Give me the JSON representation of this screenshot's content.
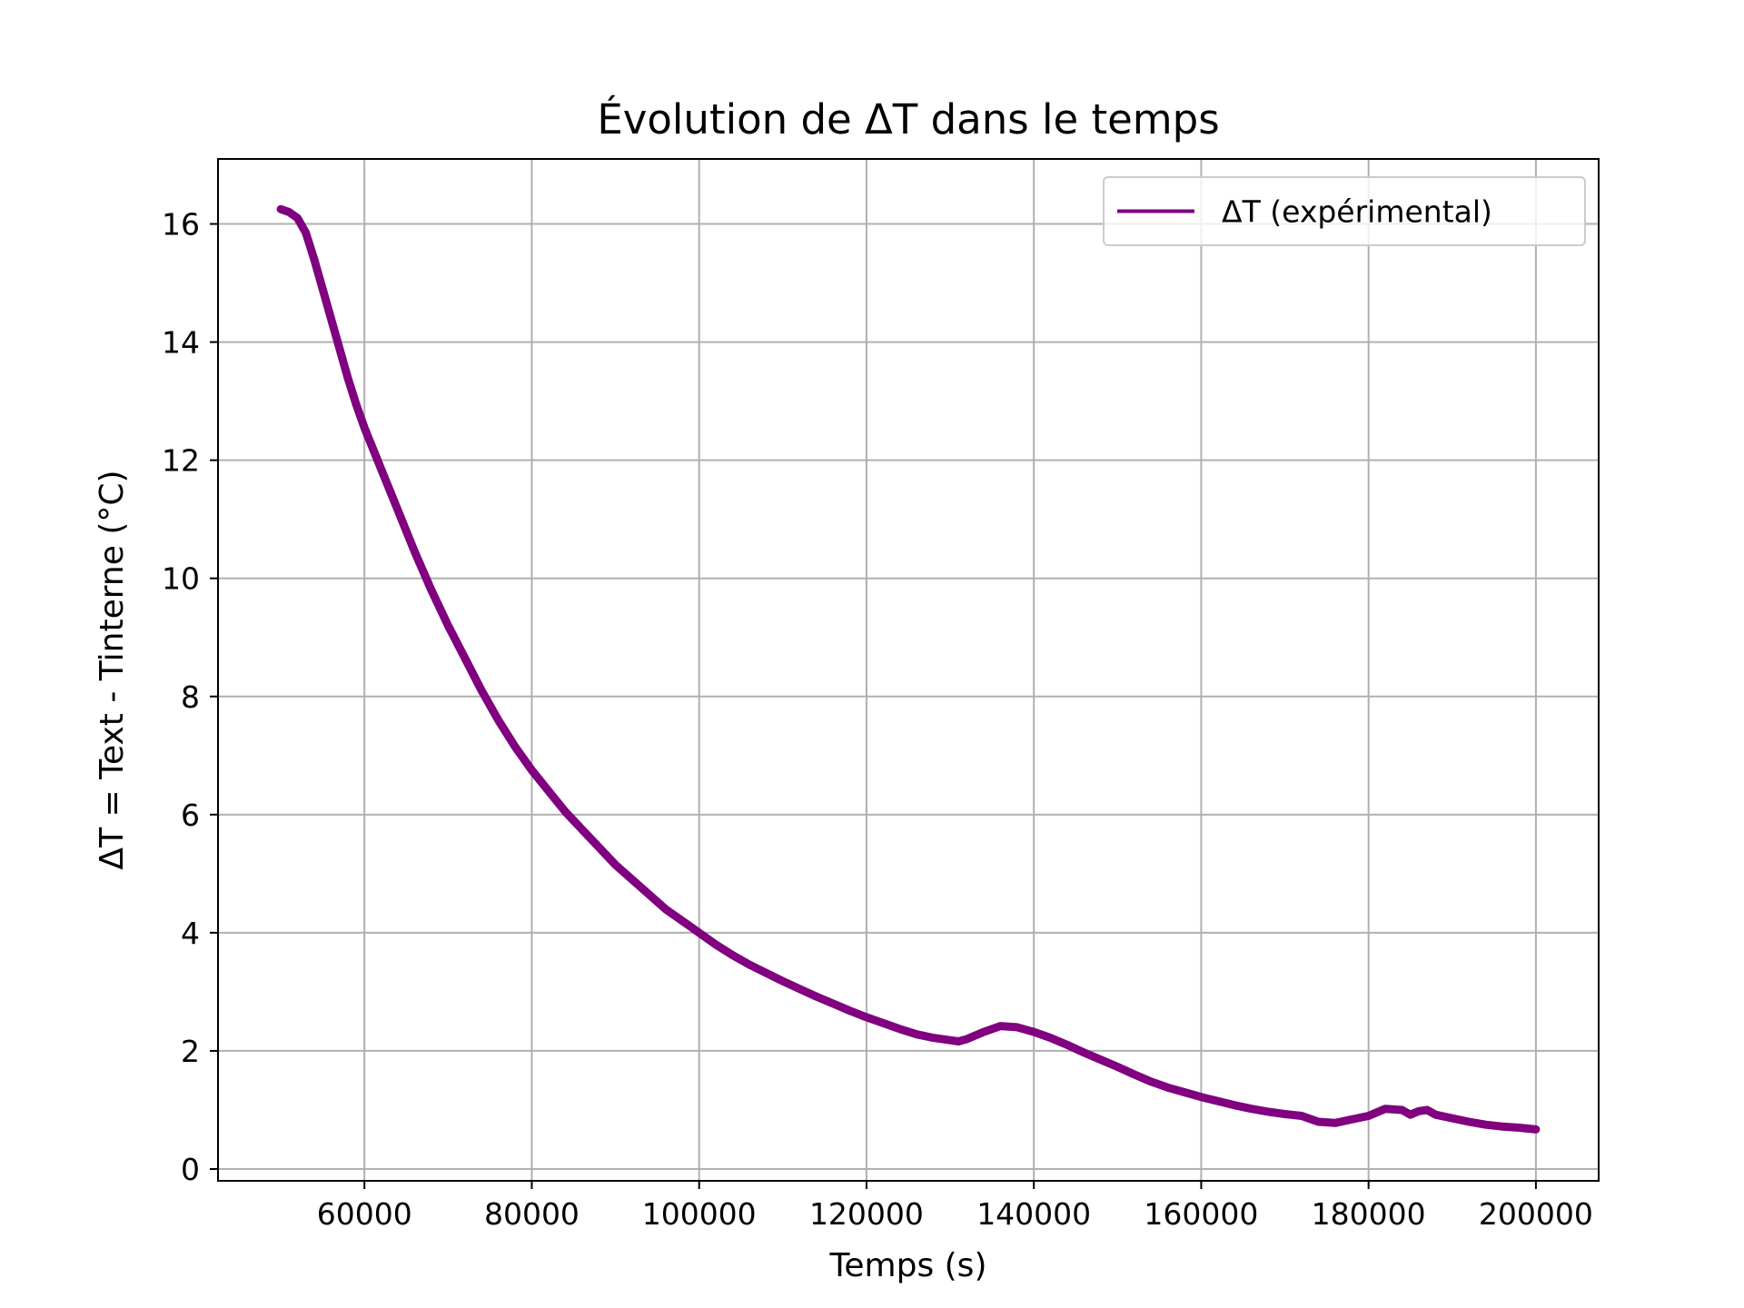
{
  "chart_data": {
    "type": "line",
    "title": "Évolution de ΔT dans le temps",
    "xlabel": "Temps (s)",
    "ylabel": "ΔT = Text - Tinterne (°C)",
    "xlim": [
      42500,
      207500
    ],
    "ylim": [
      -0.2,
      17.1
    ],
    "xticks": [
      60000,
      80000,
      100000,
      120000,
      140000,
      160000,
      180000,
      200000
    ],
    "xtick_labels": [
      "60000",
      "80000",
      "100000",
      "120000",
      "140000",
      "160000",
      "180000",
      "200000"
    ],
    "yticks": [
      0,
      2,
      4,
      6,
      8,
      10,
      12,
      14,
      16
    ],
    "ytick_labels": [
      "0",
      "2",
      "4",
      "6",
      "8",
      "10",
      "12",
      "14",
      "16"
    ],
    "grid": true,
    "legend_position": "top-right",
    "series": [
      {
        "name": "ΔT (expérimental)",
        "color": "#800080",
        "x": [
          50000,
          51000,
          52000,
          53000,
          54000,
          55000,
          56000,
          57000,
          58000,
          59000,
          60000,
          62000,
          64000,
          66000,
          68000,
          70000,
          72000,
          74000,
          76000,
          78000,
          80000,
          82000,
          84000,
          86000,
          88000,
          90000,
          92000,
          94000,
          96000,
          98000,
          100000,
          102000,
          104000,
          106000,
          108000,
          110000,
          112000,
          114000,
          116000,
          118000,
          120000,
          122000,
          124000,
          126000,
          128000,
          130000,
          131000,
          132000,
          134000,
          136000,
          138000,
          140000,
          142000,
          144000,
          146000,
          148000,
          150000,
          152000,
          154000,
          156000,
          158000,
          160000,
          162000,
          164000,
          166000,
          168000,
          170000,
          172000,
          174000,
          176000,
          178000,
          180000,
          182000,
          184000,
          185000,
          186000,
          187000,
          188000,
          190000,
          192000,
          194000,
          196000,
          198000,
          200000
        ],
        "y": [
          16.25,
          16.2,
          16.1,
          15.85,
          15.4,
          14.9,
          14.4,
          13.9,
          13.4,
          12.95,
          12.55,
          11.85,
          11.15,
          10.45,
          9.8,
          9.2,
          8.65,
          8.1,
          7.6,
          7.15,
          6.75,
          6.4,
          6.05,
          5.75,
          5.45,
          5.15,
          4.9,
          4.65,
          4.4,
          4.2,
          4.0,
          3.8,
          3.62,
          3.46,
          3.32,
          3.18,
          3.05,
          2.92,
          2.8,
          2.68,
          2.57,
          2.47,
          2.37,
          2.28,
          2.22,
          2.18,
          2.16,
          2.2,
          2.32,
          2.42,
          2.4,
          2.32,
          2.22,
          2.1,
          1.97,
          1.85,
          1.73,
          1.6,
          1.48,
          1.38,
          1.3,
          1.22,
          1.15,
          1.08,
          1.02,
          0.97,
          0.93,
          0.9,
          0.8,
          0.78,
          0.84,
          0.9,
          1.02,
          1.0,
          0.92,
          0.98,
          1.0,
          0.92,
          0.86,
          0.8,
          0.75,
          0.72,
          0.7,
          0.67
        ]
      }
    ]
  }
}
